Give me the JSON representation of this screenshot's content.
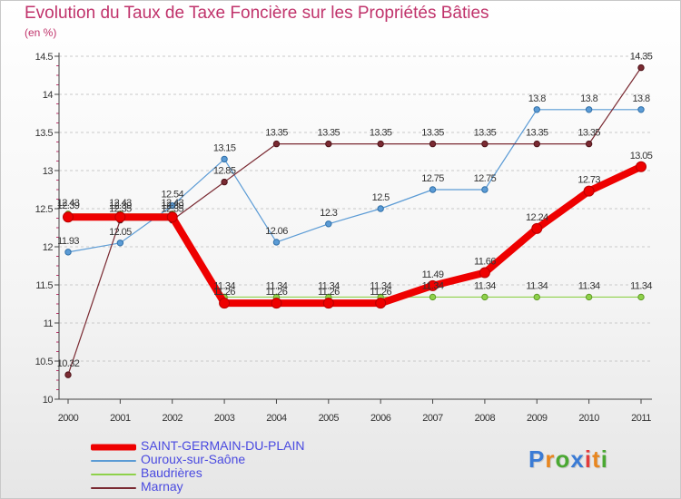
{
  "header": {
    "title": "Evolution du Taux de Taxe Foncière sur les Propriétés Bâties",
    "subtitle": "(en %)"
  },
  "logo": {
    "text": "Proxiti",
    "letter_colors": [
      "#3a7bd5",
      "#e8861f",
      "#4aa832",
      "#3a7bd5",
      "#e23b3b",
      "#e8861f",
      "#4aa832"
    ]
  },
  "chart_data": {
    "type": "line",
    "title": "Evolution du Taux de Taxe Foncière sur les Propriétés Bâties",
    "subtitle": "(en %)",
    "x": [
      "2000",
      "2001",
      "2002",
      "2003",
      "2004",
      "2005",
      "2006",
      "2007",
      "2008",
      "2009",
      "2010",
      "2011"
    ],
    "ylim": [
      10,
      14.5
    ],
    "yticks": [
      "10",
      "10.5",
      "11",
      "11.5",
      "12",
      "12.5",
      "13",
      "13.5",
      "14",
      "14.5"
    ],
    "grid": "horizontal dashed",
    "legend_position": "bottom-left",
    "series": [
      {
        "name": "SAINT-GERMAIN-DU-PLAIN",
        "color": "#ee0000",
        "values": [
          12.39,
          12.39,
          12.39,
          11.26,
          11.26,
          11.26,
          11.26,
          11.49,
          11.66,
          12.24,
          12.73,
          13.05
        ],
        "labels": [
          "12.39",
          "12.39",
          "12.39",
          "11.26",
          "11.26",
          "11.26",
          "11.26",
          "11.49",
          "11.66",
          "12.24",
          "12.73",
          "13.05"
        ]
      },
      {
        "name": "Ouroux-sur-Saône",
        "color": "#5b9bd5",
        "values": [
          11.93,
          12.05,
          12.54,
          13.15,
          12.06,
          12.3,
          12.5,
          12.75,
          12.75,
          13.8,
          13.8,
          13.8
        ],
        "labels": [
          "11.93",
          "12.05",
          "12.54",
          "13.15",
          "12.06",
          "12.3",
          "12.5",
          "12.75",
          "12.75",
          "13.8",
          "13.8",
          "13.8"
        ]
      },
      {
        "name": "Baudrières",
        "color": "#8ed14a",
        "values": [
          12.43,
          12.43,
          12.43,
          11.34,
          11.34,
          11.34,
          11.34,
          11.34,
          11.34,
          11.34,
          11.34,
          11.34
        ],
        "labels": [
          "12.43",
          "12.43",
          "12.43",
          "11.34",
          "11.34",
          "11.34",
          "11.34",
          "11.34",
          "11.34",
          "11.34",
          "11.34",
          "11.34"
        ]
      },
      {
        "name": "Marnay",
        "color": "#7a2a32",
        "values": [
          10.32,
          12.35,
          12.35,
          12.85,
          13.35,
          13.35,
          13.35,
          13.35,
          13.35,
          13.35,
          13.35,
          14.35
        ],
        "labels": [
          "10.32",
          "12.35",
          "12.35",
          "12.85",
          "13.35",
          "13.35",
          "13.35",
          "13.35",
          "13.35",
          "13.35",
          "13.35",
          "14.35"
        ]
      }
    ]
  }
}
